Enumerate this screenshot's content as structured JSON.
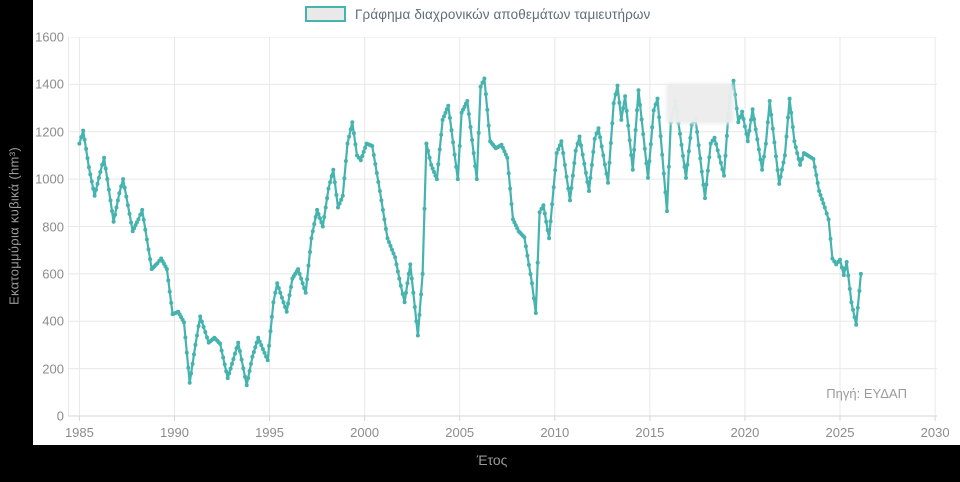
{
  "colors": {
    "page_background": "#000000",
    "panel_background": "#ffffff",
    "line": "#45b3ae",
    "grid": "#e8e8e8",
    "axis": "#d6d6d6",
    "tick_text": "#8c8c8c",
    "legend_text": "#5f6d7a",
    "legend_swatch_fill": "#e9e9e9"
  },
  "legend": {
    "label": "Γράφημα διαχρονικών αποθεμάτων ταμιευτήρων"
  },
  "source_note": "Πηγή: ΕΥΔΑΠ",
  "chart_data": {
    "type": "line",
    "series_name": "Γράφημα διαχρονικών αποθεμάτων ταμιευτήρων",
    "xlabel": "Έτος",
    "ylabel": "Εκατομμύρια κυβικά (hm³)",
    "grid": true,
    "legend_position": "top-center",
    "xlim": [
      1984.4,
      2030.1
    ],
    "ylim": [
      0,
      1600
    ],
    "x_ticks": [
      1985,
      1990,
      1995,
      2000,
      2005,
      2010,
      2015,
      2020,
      2025,
      2030
    ],
    "y_ticks": [
      0,
      200,
      400,
      600,
      800,
      1000,
      1200,
      1400,
      1600
    ],
    "points": [
      [
        1985.0,
        1150
      ],
      [
        1985.2,
        1205
      ],
      [
        1985.5,
        1050
      ],
      [
        1985.8,
        930
      ],
      [
        1986.1,
        1030
      ],
      [
        1986.3,
        1090
      ],
      [
        1986.8,
        820
      ],
      [
        1987.1,
        940
      ],
      [
        1987.3,
        1000
      ],
      [
        1987.8,
        780
      ],
      [
        1988.1,
        830
      ],
      [
        1988.3,
        870
      ],
      [
        1988.8,
        620
      ],
      [
        1989.1,
        645
      ],
      [
        1989.3,
        665
      ],
      [
        1989.6,
        620
      ],
      [
        1989.9,
        430
      ],
      [
        1990.2,
        440
      ],
      [
        1990.5,
        395
      ],
      [
        1990.8,
        140
      ],
      [
        1991.1,
        300
      ],
      [
        1991.35,
        420
      ],
      [
        1991.8,
        310
      ],
      [
        1992.1,
        330
      ],
      [
        1992.4,
        305
      ],
      [
        1992.8,
        160
      ],
      [
        1993.1,
        240
      ],
      [
        1993.35,
        310
      ],
      [
        1993.8,
        130
      ],
      [
        1994.1,
        250
      ],
      [
        1994.4,
        330
      ],
      [
        1994.9,
        235
      ],
      [
        1995.2,
        480
      ],
      [
        1995.4,
        560
      ],
      [
        1995.9,
        440
      ],
      [
        1996.2,
        580
      ],
      [
        1996.5,
        620
      ],
      [
        1996.9,
        520
      ],
      [
        1997.2,
        750
      ],
      [
        1997.5,
        870
      ],
      [
        1997.8,
        800
      ],
      [
        1998.1,
        960
      ],
      [
        1998.35,
        1040
      ],
      [
        1998.6,
        880
      ],
      [
        1998.85,
        930
      ],
      [
        1999.1,
        1150
      ],
      [
        1999.35,
        1240
      ],
      [
        1999.6,
        1100
      ],
      [
        1999.8,
        1080
      ],
      [
        2000.1,
        1150
      ],
      [
        2000.4,
        1140
      ],
      [
        2000.8,
        950
      ],
      [
        2001.2,
        750
      ],
      [
        2001.6,
        670
      ],
      [
        2001.9,
        550
      ],
      [
        2002.1,
        480
      ],
      [
        2002.4,
        640
      ],
      [
        2002.8,
        340
      ],
      [
        2003.05,
        600
      ],
      [
        2003.25,
        1150
      ],
      [
        2003.5,
        1060
      ],
      [
        2003.8,
        1000
      ],
      [
        2004.1,
        1250
      ],
      [
        2004.4,
        1310
      ],
      [
        2004.9,
        1000
      ],
      [
        2005.1,
        1280
      ],
      [
        2005.4,
        1330
      ],
      [
        2005.9,
        1000
      ],
      [
        2006.1,
        1390
      ],
      [
        2006.3,
        1425
      ],
      [
        2006.6,
        1160
      ],
      [
        2006.9,
        1130
      ],
      [
        2007.2,
        1145
      ],
      [
        2007.5,
        1090
      ],
      [
        2007.8,
        830
      ],
      [
        2008.1,
        780
      ],
      [
        2008.4,
        755
      ],
      [
        2008.8,
        560
      ],
      [
        2009.0,
        435
      ],
      [
        2009.2,
        860
      ],
      [
        2009.4,
        890
      ],
      [
        2009.7,
        750
      ],
      [
        2010.1,
        1110
      ],
      [
        2010.35,
        1160
      ],
      [
        2010.8,
        910
      ],
      [
        2011.1,
        1120
      ],
      [
        2011.3,
        1180
      ],
      [
        2011.8,
        950
      ],
      [
        2012.1,
        1170
      ],
      [
        2012.3,
        1215
      ],
      [
        2012.8,
        985
      ],
      [
        2013.1,
        1320
      ],
      [
        2013.3,
        1395
      ],
      [
        2013.5,
        1250
      ],
      [
        2013.7,
        1350
      ],
      [
        2014.1,
        1040
      ],
      [
        2014.4,
        1375
      ],
      [
        2014.9,
        1005
      ],
      [
        2015.2,
        1290
      ],
      [
        2015.4,
        1340
      ],
      [
        2015.9,
        865
      ],
      [
        2016.1,
        1240
      ],
      [
        2016.35,
        1330
      ],
      [
        2016.9,
        1005
      ],
      [
        2017.2,
        1230
      ],
      [
        2017.4,
        1255
      ],
      [
        2017.9,
        920
      ],
      [
        2018.2,
        1150
      ],
      [
        2018.4,
        1175
      ],
      [
        2018.9,
        1015
      ],
      [
        2019.2,
        1350
      ],
      [
        2019.4,
        1415
      ],
      [
        2019.65,
        1240
      ],
      [
        2019.85,
        1285
      ],
      [
        2020.15,
        1160
      ],
      [
        2020.4,
        1295
      ],
      [
        2020.9,
        1040
      ],
      [
        2021.1,
        1150
      ],
      [
        2021.3,
        1330
      ],
      [
        2021.8,
        980
      ],
      [
        2022.1,
        1100
      ],
      [
        2022.35,
        1340
      ],
      [
        2022.6,
        1160
      ],
      [
        2022.9,
        1060
      ],
      [
        2023.1,
        1110
      ],
      [
        2023.4,
        1095
      ],
      [
        2023.6,
        1085
      ],
      [
        2023.9,
        950
      ],
      [
        2024.2,
        880
      ],
      [
        2024.4,
        830
      ],
      [
        2024.6,
        665
      ],
      [
        2024.8,
        640
      ],
      [
        2025.0,
        660
      ],
      [
        2025.2,
        595
      ],
      [
        2025.35,
        650
      ],
      [
        2025.6,
        480
      ],
      [
        2025.85,
        385
      ],
      [
        2026.1,
        600
      ]
    ]
  }
}
